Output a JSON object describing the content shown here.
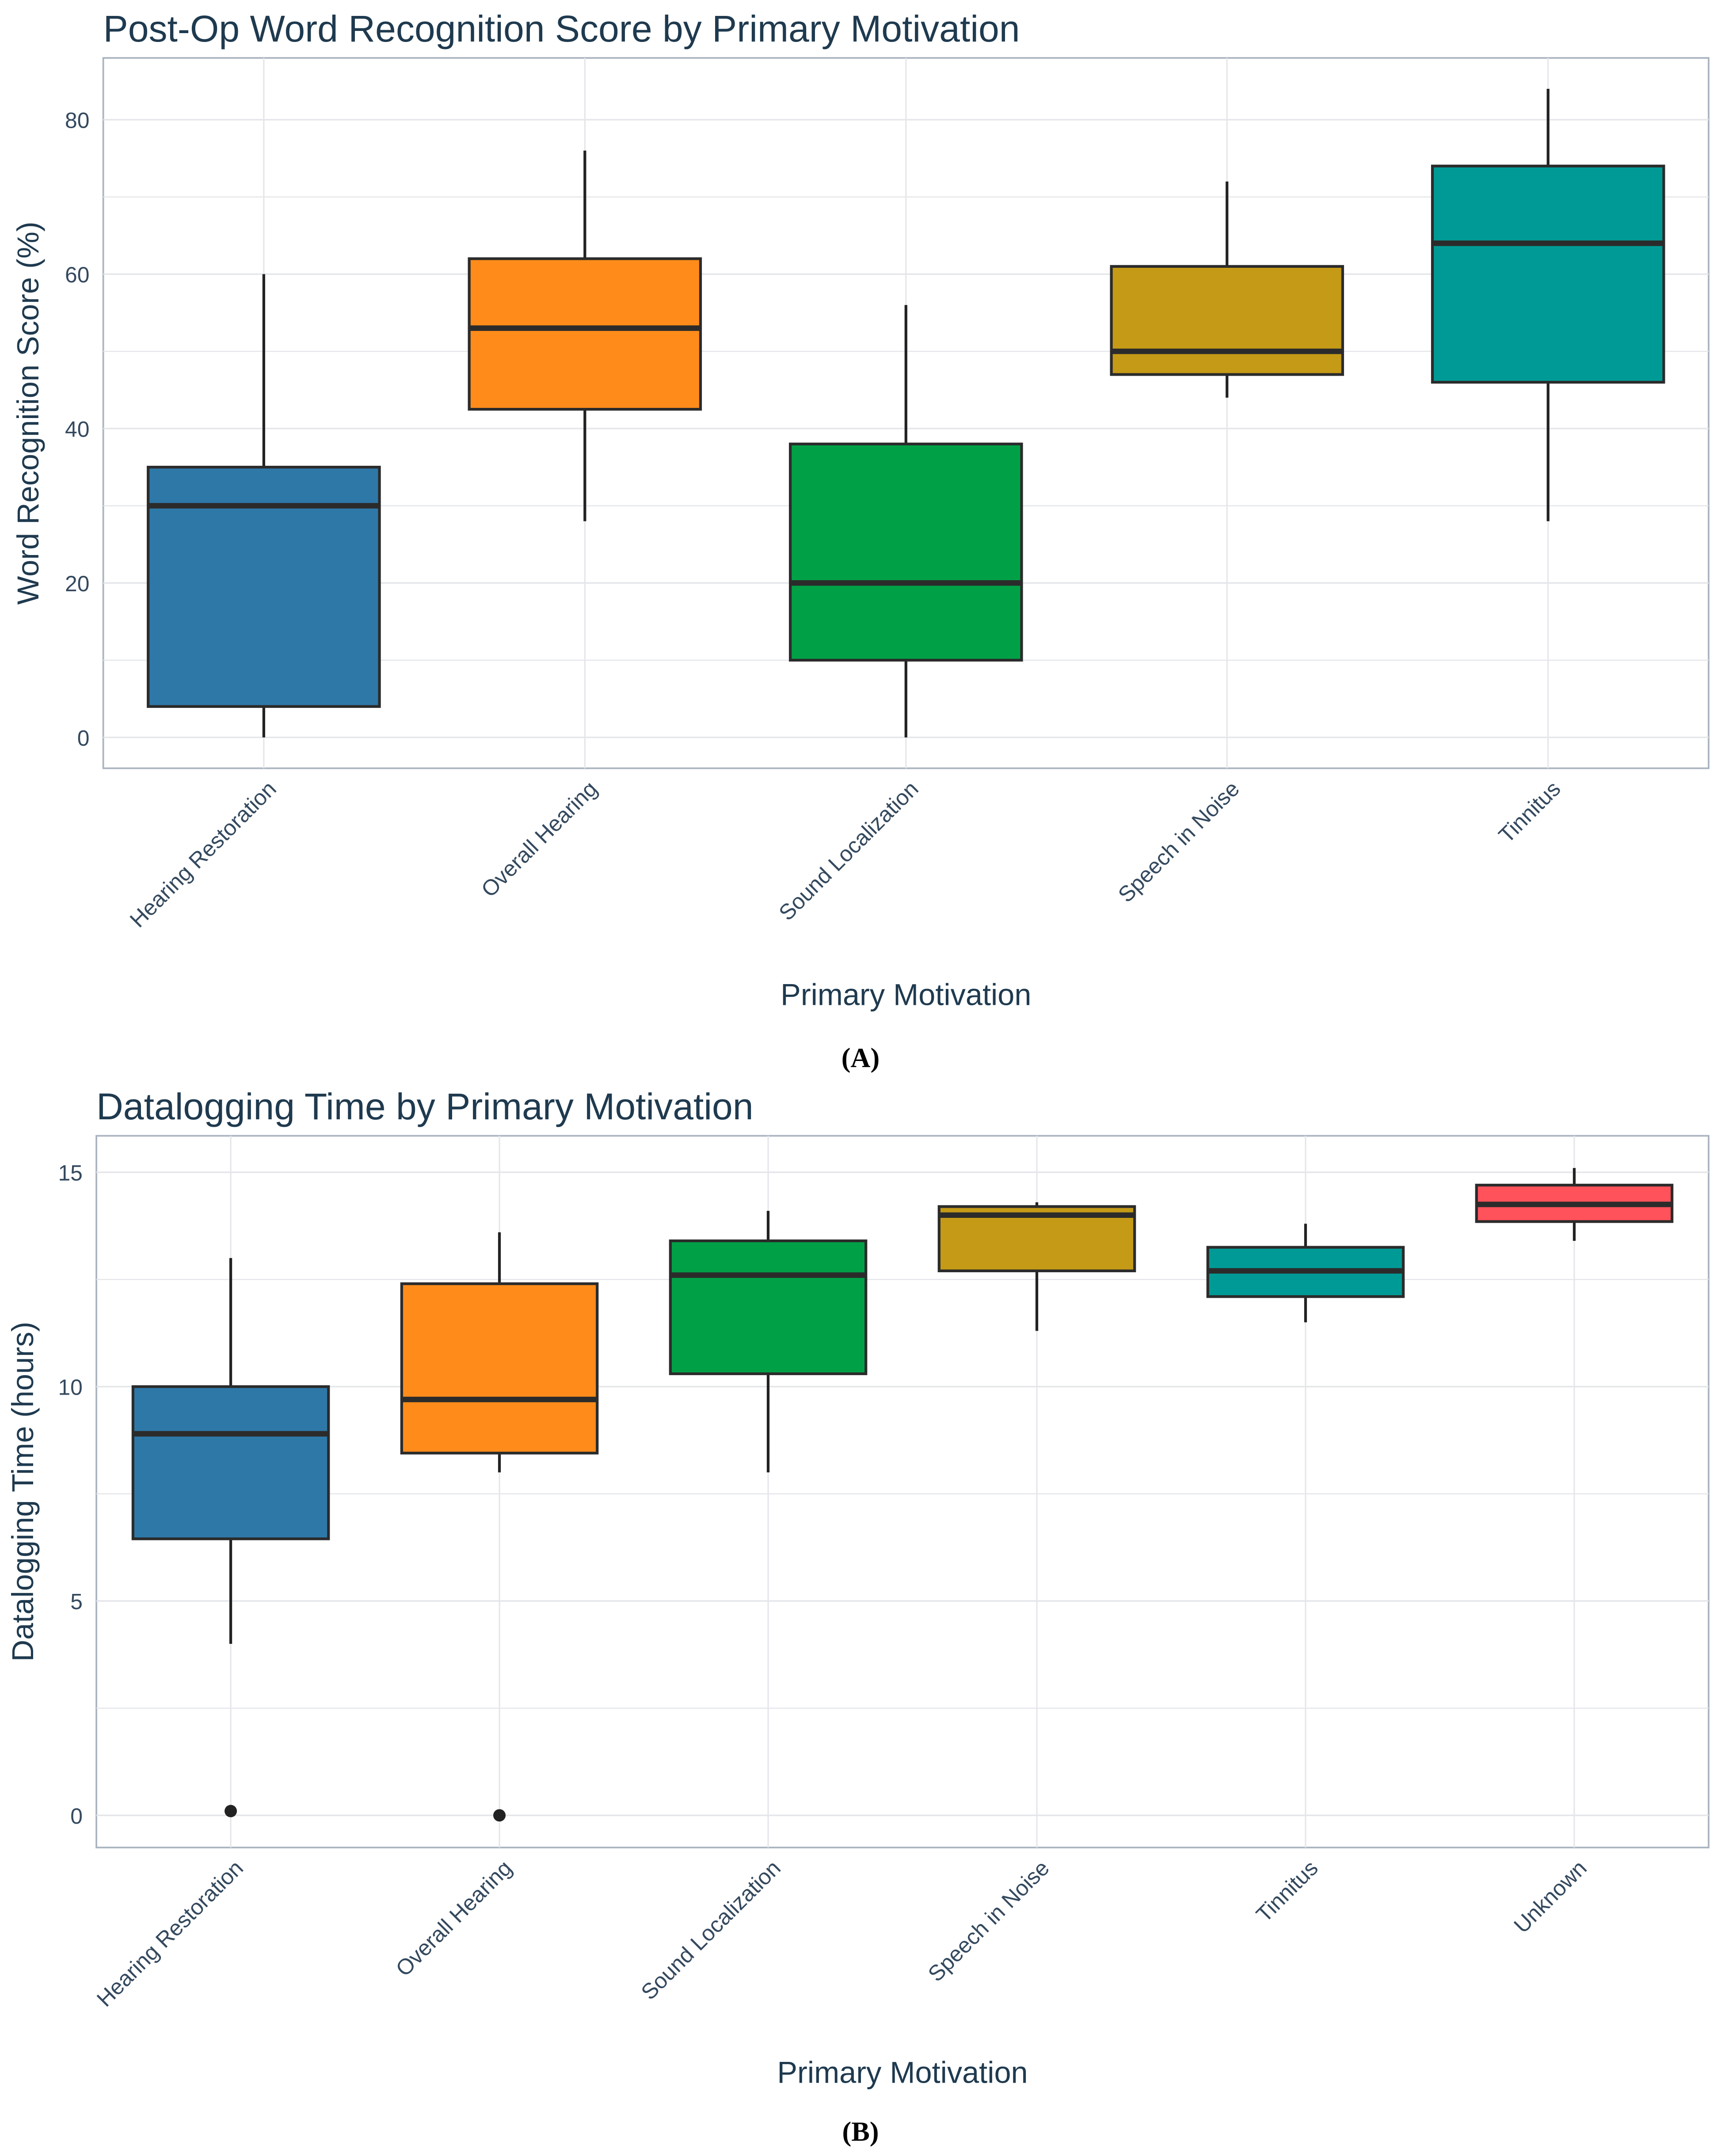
{
  "chart_data": [
    {
      "type": "box",
      "title": "Post-Op Word Recognition Score by Primary Motivation",
      "xlabel": "Primary Motivation",
      "ylabel": "Word Recognition Score (%)",
      "caption": "(A)",
      "ylim": [
        -4,
        88
      ],
      "yticks": [
        0,
        20,
        40,
        60,
        80
      ],
      "grid": true,
      "categories": [
        "Hearing Restoration",
        "Overall Hearing",
        "Sound Localization",
        "Speech in Noise",
        "Tinnitus"
      ],
      "colors": [
        "#2e78a8",
        "#ff8c1a",
        "#00a146",
        "#c49a16",
        "#009a96"
      ],
      "boxes": [
        {
          "low": 0,
          "q1": 4,
          "median": 30,
          "q3": 35,
          "high": 60,
          "outliers": []
        },
        {
          "low": 28,
          "q1": 42.5,
          "median": 53,
          "q3": 62,
          "high": 76,
          "outliers": []
        },
        {
          "low": 0,
          "q1": 10,
          "median": 20,
          "q3": 38,
          "high": 56,
          "outliers": []
        },
        {
          "low": 44,
          "q1": 47,
          "median": 50,
          "q3": 61,
          "high": 72,
          "outliers": []
        },
        {
          "low": 28,
          "q1": 46,
          "median": 64,
          "q3": 74,
          "high": 84,
          "outliers": []
        }
      ]
    },
    {
      "type": "box",
      "title": "Datalogging Time by Primary Motivation",
      "xlabel": "Primary Motivation",
      "ylabel": "Datalogging Time (hours)",
      "caption": "(B)",
      "ylim": [
        -0.75,
        15.85
      ],
      "yticks": [
        0,
        5,
        10,
        15
      ],
      "grid": true,
      "categories": [
        "Hearing Restoration",
        "Overall Hearing",
        "Sound Localization",
        "Speech in Noise",
        "Tinnitus",
        "Unknown"
      ],
      "colors": [
        "#2e78a8",
        "#ff8c1a",
        "#00a146",
        "#c49a16",
        "#009a96",
        "#ff525a"
      ],
      "boxes": [
        {
          "low": 4,
          "q1": 6.45,
          "median": 8.9,
          "q3": 10,
          "high": 13,
          "outliers": [
            0.1
          ]
        },
        {
          "low": 8,
          "q1": 8.45,
          "median": 9.7,
          "q3": 12.4,
          "high": 13.6,
          "outliers": [
            0
          ]
        },
        {
          "low": 8,
          "q1": 10.3,
          "median": 12.6,
          "q3": 13.4,
          "high": 14.1,
          "outliers": []
        },
        {
          "low": 11.3,
          "q1": 12.7,
          "median": 14.0,
          "q3": 14.2,
          "high": 14.3,
          "outliers": []
        },
        {
          "low": 11.5,
          "q1": 12.1,
          "median": 12.7,
          "q3": 13.25,
          "high": 13.8,
          "outliers": []
        },
        {
          "low": 13.4,
          "q1": 13.85,
          "median": 14.25,
          "q3": 14.7,
          "high": 15.1,
          "outliers": []
        }
      ]
    }
  ]
}
